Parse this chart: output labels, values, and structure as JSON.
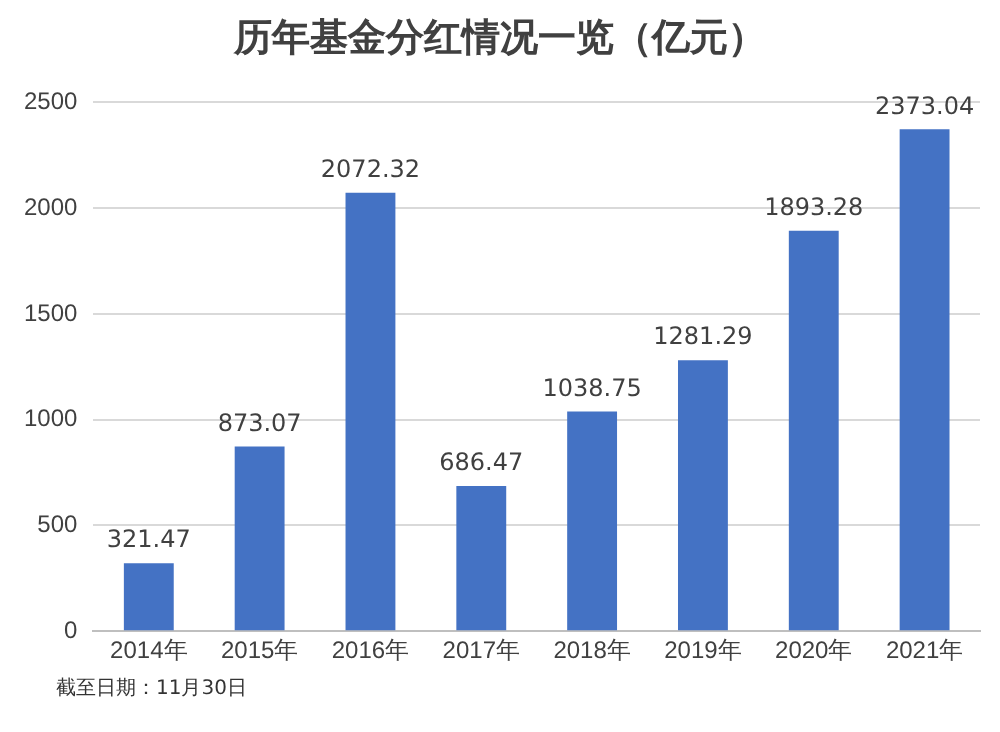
{
  "chart_data": {
    "type": "bar",
    "title": "历年基金分红情况一览（亿元）",
    "categories": [
      "2014年",
      "2015年",
      "2016年",
      "2017年",
      "2018年",
      "2019年",
      "2020年",
      "2021年"
    ],
    "values": [
      321.47,
      873.07,
      2072.32,
      686.47,
      1038.75,
      1281.29,
      1893.28,
      2373.04
    ],
    "color": "#4472c4",
    "ylim": [
      0,
      2500
    ],
    "yticks": [
      0,
      500,
      1000,
      1500,
      2000,
      2500
    ],
    "grid": "y",
    "data_labels": true,
    "annotations": [
      "截至日期：11月30日"
    ]
  }
}
